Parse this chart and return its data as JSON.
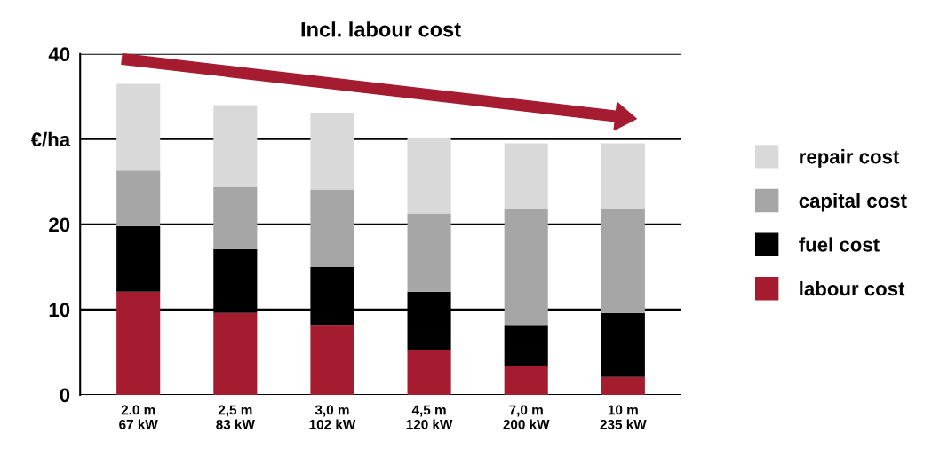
{
  "chart_data": {
    "type": "bar",
    "title": "Incl. labour cost",
    "stacked": true,
    "categories": [
      "2.0 m\n67 kW",
      "2,5 m\n83 kW",
      "3,0 m\n102 kW",
      "4,5 m\n120 kW",
      "7,0 m\n200 kW",
      "10 m\n235 kW"
    ],
    "series": [
      {
        "name": "labour cost",
        "color": "#a51c30",
        "values": [
          12.1,
          9.6,
          8.2,
          5.3,
          3.4,
          2.1
        ]
      },
      {
        "name": "fuel cost",
        "color": "#000000",
        "values": [
          7.7,
          7.5,
          6.8,
          6.8,
          4.8,
          7.5
        ]
      },
      {
        "name": "capital cost",
        "color": "#a6a6a6",
        "values": [
          6.5,
          7.3,
          9.1,
          9.2,
          13.6,
          12.2
        ]
      },
      {
        "name": "repair cost",
        "color": "#d9d9d9",
        "values": [
          10.2,
          9.6,
          9.0,
          8.9,
          7.7,
          7.7
        ]
      }
    ],
    "ylim": [
      0,
      40
    ],
    "yticks": [
      0,
      10,
      20,
      {
        "value": 30,
        "label": "€/ha"
      },
      40
    ],
    "grid": "y",
    "legend": "right"
  }
}
